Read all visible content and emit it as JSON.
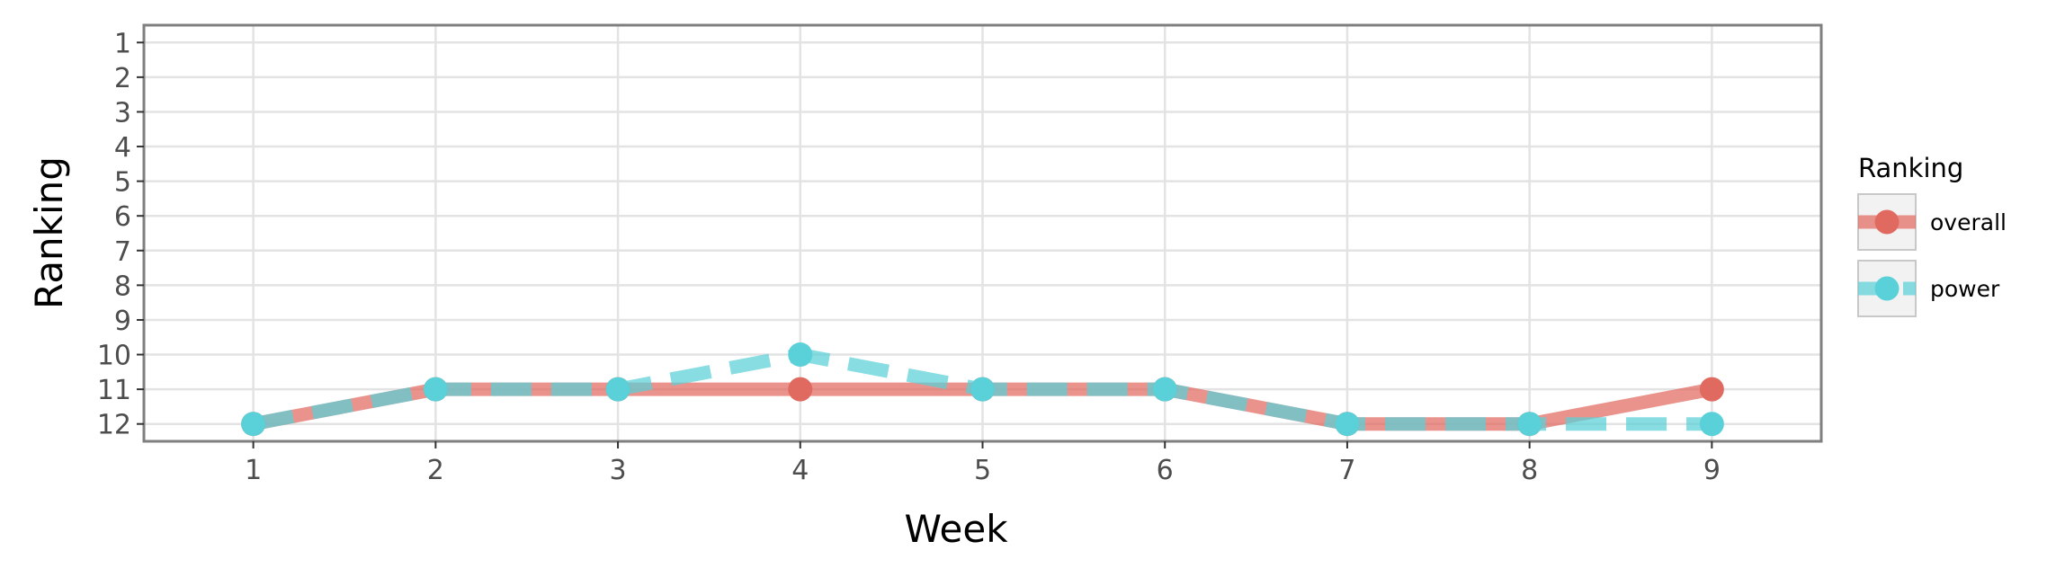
{
  "chart_data": {
    "type": "line",
    "title": "",
    "xlabel": "Week",
    "ylabel": "Ranking",
    "x": [
      1,
      2,
      3,
      4,
      5,
      6,
      7,
      8,
      9
    ],
    "xlim": [
      0.4,
      9.6
    ],
    "ylim": [
      12.5,
      0.5
    ],
    "y_reversed": true,
    "x_ticks": [
      "1",
      "2",
      "3",
      "4",
      "5",
      "6",
      "7",
      "8",
      "9"
    ],
    "y_ticks": [
      "1",
      "2",
      "3",
      "4",
      "5",
      "6",
      "7",
      "8",
      "9",
      "10",
      "11",
      "12"
    ],
    "grid": true,
    "legend": {
      "title": "Ranking",
      "position": "right"
    },
    "series": [
      {
        "name": "overall",
        "color": "#e06a60",
        "line_style": "solid",
        "values": [
          12,
          11,
          11,
          11,
          11,
          11,
          12,
          12,
          11
        ]
      },
      {
        "name": "power",
        "color": "#5ad0d8",
        "line_style": "dashed",
        "values": [
          12,
          11,
          11,
          10,
          11,
          11,
          12,
          12,
          12
        ]
      }
    ]
  }
}
